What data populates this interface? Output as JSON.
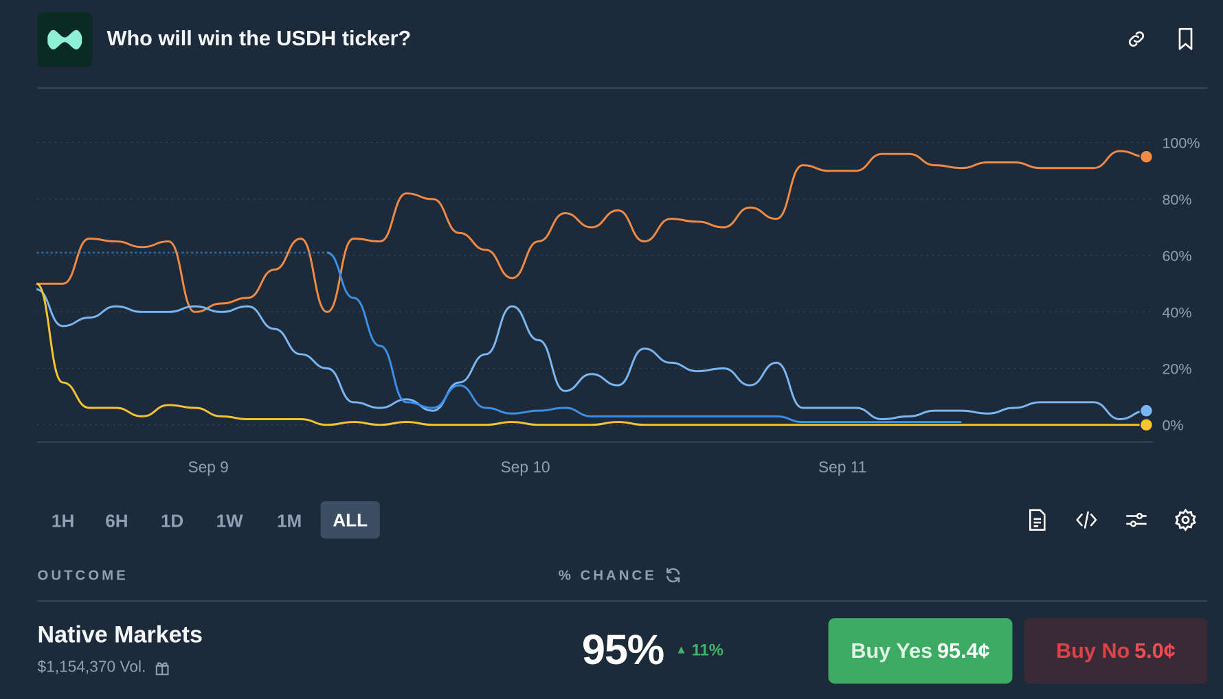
{
  "header": {
    "title": "Who will win the USDH ticker?",
    "logo_icon": "hyperliquid-logo",
    "actions": [
      {
        "icon": "link-icon"
      },
      {
        "icon": "bookmark-icon"
      }
    ]
  },
  "timeframes": {
    "options": [
      "1H",
      "6H",
      "1D",
      "1W",
      "1M",
      "ALL"
    ],
    "selected": "ALL"
  },
  "chart_tools": [
    "document-icon",
    "code-icon",
    "sliders-icon",
    "settings-icon"
  ],
  "table": {
    "col_outcome": "OUTCOME",
    "col_chance": "% CHANCE",
    "refresh_icon": "refresh-icon"
  },
  "outcome": {
    "name": "Native Markets",
    "volume": "$1,154,370 Vol.",
    "chance": "95%",
    "change": "11%",
    "change_direction": "up",
    "buy_yes_label": "Buy Yes",
    "buy_yes_price": "95.4¢",
    "buy_no_label": "Buy No",
    "buy_no_price": "5.0¢"
  },
  "colors": {
    "background": "#1d2a3a",
    "yes": "#3daa63",
    "no": "#d9434a",
    "up": "#3fb46a"
  },
  "chart_data": {
    "type": "line",
    "x_ticks": [
      "Sep 9",
      "Sep 10",
      "Sep 11"
    ],
    "x": [
      "Sep 8 11:00",
      "Sep 8 13:00",
      "Sep 8 15:00",
      "Sep 8 17:00",
      "Sep 8 19:00",
      "Sep 8 21:00",
      "Sep 8 23:00",
      "Sep 9 01:00",
      "Sep 9 03:00",
      "Sep 9 05:00",
      "Sep 9 07:00",
      "Sep 9 09:00",
      "Sep 9 11:00",
      "Sep 9 13:00",
      "Sep 9 15:00",
      "Sep 9 17:00",
      "Sep 9 19:00",
      "Sep 9 21:00",
      "Sep 9 23:00",
      "Sep 10 01:00",
      "Sep 10 03:00",
      "Sep 10 05:00",
      "Sep 10 07:00",
      "Sep 10 09:00",
      "Sep 10 11:00",
      "Sep 10 13:00",
      "Sep 10 15:00",
      "Sep 10 17:00",
      "Sep 10 19:00",
      "Sep 10 21:00",
      "Sep 10 23:00",
      "Sep 11 01:00",
      "Sep 11 03:00",
      "Sep 11 05:00",
      "Sep 11 07:00",
      "Sep 11 09:00",
      "Sep 11 11:00",
      "Sep 11 13:00",
      "Sep 11 15:00",
      "Sep 11 17:00",
      "Sep 11 19:00",
      "Sep 11 21:00",
      "Sep 11 23:00"
    ],
    "y_ticks": [
      "0%",
      "20%",
      "40%",
      "60%",
      "80%",
      "100%"
    ],
    "ylim": [
      0,
      100
    ],
    "grid": "horizontal-dotted",
    "series": [
      {
        "color": "#f08a45",
        "values": [
          50,
          50,
          66,
          65,
          63,
          65,
          40,
          43,
          45,
          55,
          66,
          40,
          66,
          65,
          82,
          80,
          68,
          62,
          52,
          65,
          75,
          70,
          76,
          65,
          73,
          72,
          70,
          77,
          73,
          92,
          90,
          90,
          96,
          96,
          92,
          91,
          93,
          93,
          91,
          91,
          91,
          97,
          95
        ],
        "end_marker": true
      },
      {
        "color": "#79b6f2",
        "values": [
          48,
          35,
          38,
          42,
          40,
          40,
          42,
          40,
          42,
          34,
          25,
          20,
          8,
          6,
          9,
          5,
          15,
          25,
          42,
          30,
          12,
          18,
          14,
          27,
          22,
          19,
          20,
          14,
          22,
          6,
          6,
          6,
          2,
          3,
          5,
          5,
          4,
          6,
          8,
          8,
          8,
          2,
          5
        ],
        "end_marker": true
      },
      {
        "color": "#3b8fe8",
        "values": [
          null,
          null,
          null,
          null,
          null,
          null,
          null,
          null,
          null,
          null,
          null,
          61,
          45,
          28,
          8,
          6,
          14,
          6,
          4,
          5,
          6,
          3,
          3,
          3,
          3,
          3,
          3,
          3,
          3,
          1,
          1,
          1,
          1,
          1,
          1,
          1,
          null,
          null,
          null,
          null,
          null,
          null,
          null
        ],
        "end_marker": false
      },
      {
        "color": "#f5c431",
        "values": [
          50,
          15,
          6,
          6,
          3,
          7,
          6,
          3,
          2,
          2,
          2,
          0,
          1,
          0,
          1,
          0,
          0,
          0,
          1,
          0,
          0,
          0,
          1,
          0,
          0,
          0,
          0,
          0,
          0,
          0,
          0,
          0,
          0,
          0,
          0,
          0,
          0,
          0,
          0,
          0,
          0,
          0,
          0
        ],
        "end_marker": true
      }
    ]
  }
}
